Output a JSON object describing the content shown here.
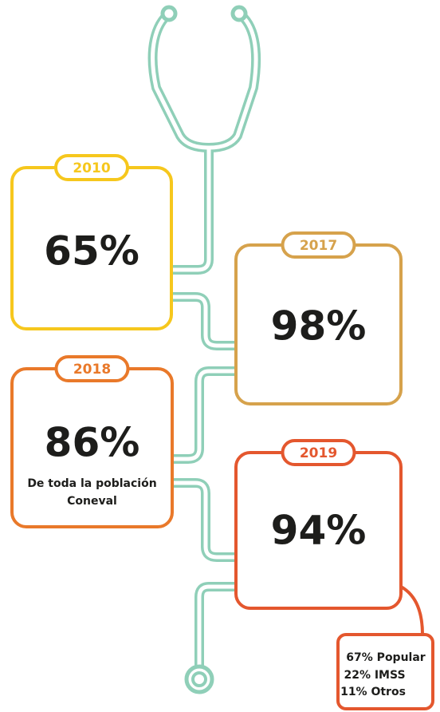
{
  "cards": [
    {
      "year": "2010",
      "value": "65%",
      "color": "#f6c71d"
    },
    {
      "year": "2017",
      "value": "98%",
      "color": "#d6a24c"
    },
    {
      "year": "2018",
      "value": "86%",
      "color": "#e9792a",
      "note": [
        "De toda la población",
        "Coneval"
      ]
    },
    {
      "year": "2019",
      "value": "94%",
      "color": "#e4572e"
    }
  ],
  "breakdown": [
    "67% Popular",
    "22% IMSS",
    "11% Otros"
  ]
}
